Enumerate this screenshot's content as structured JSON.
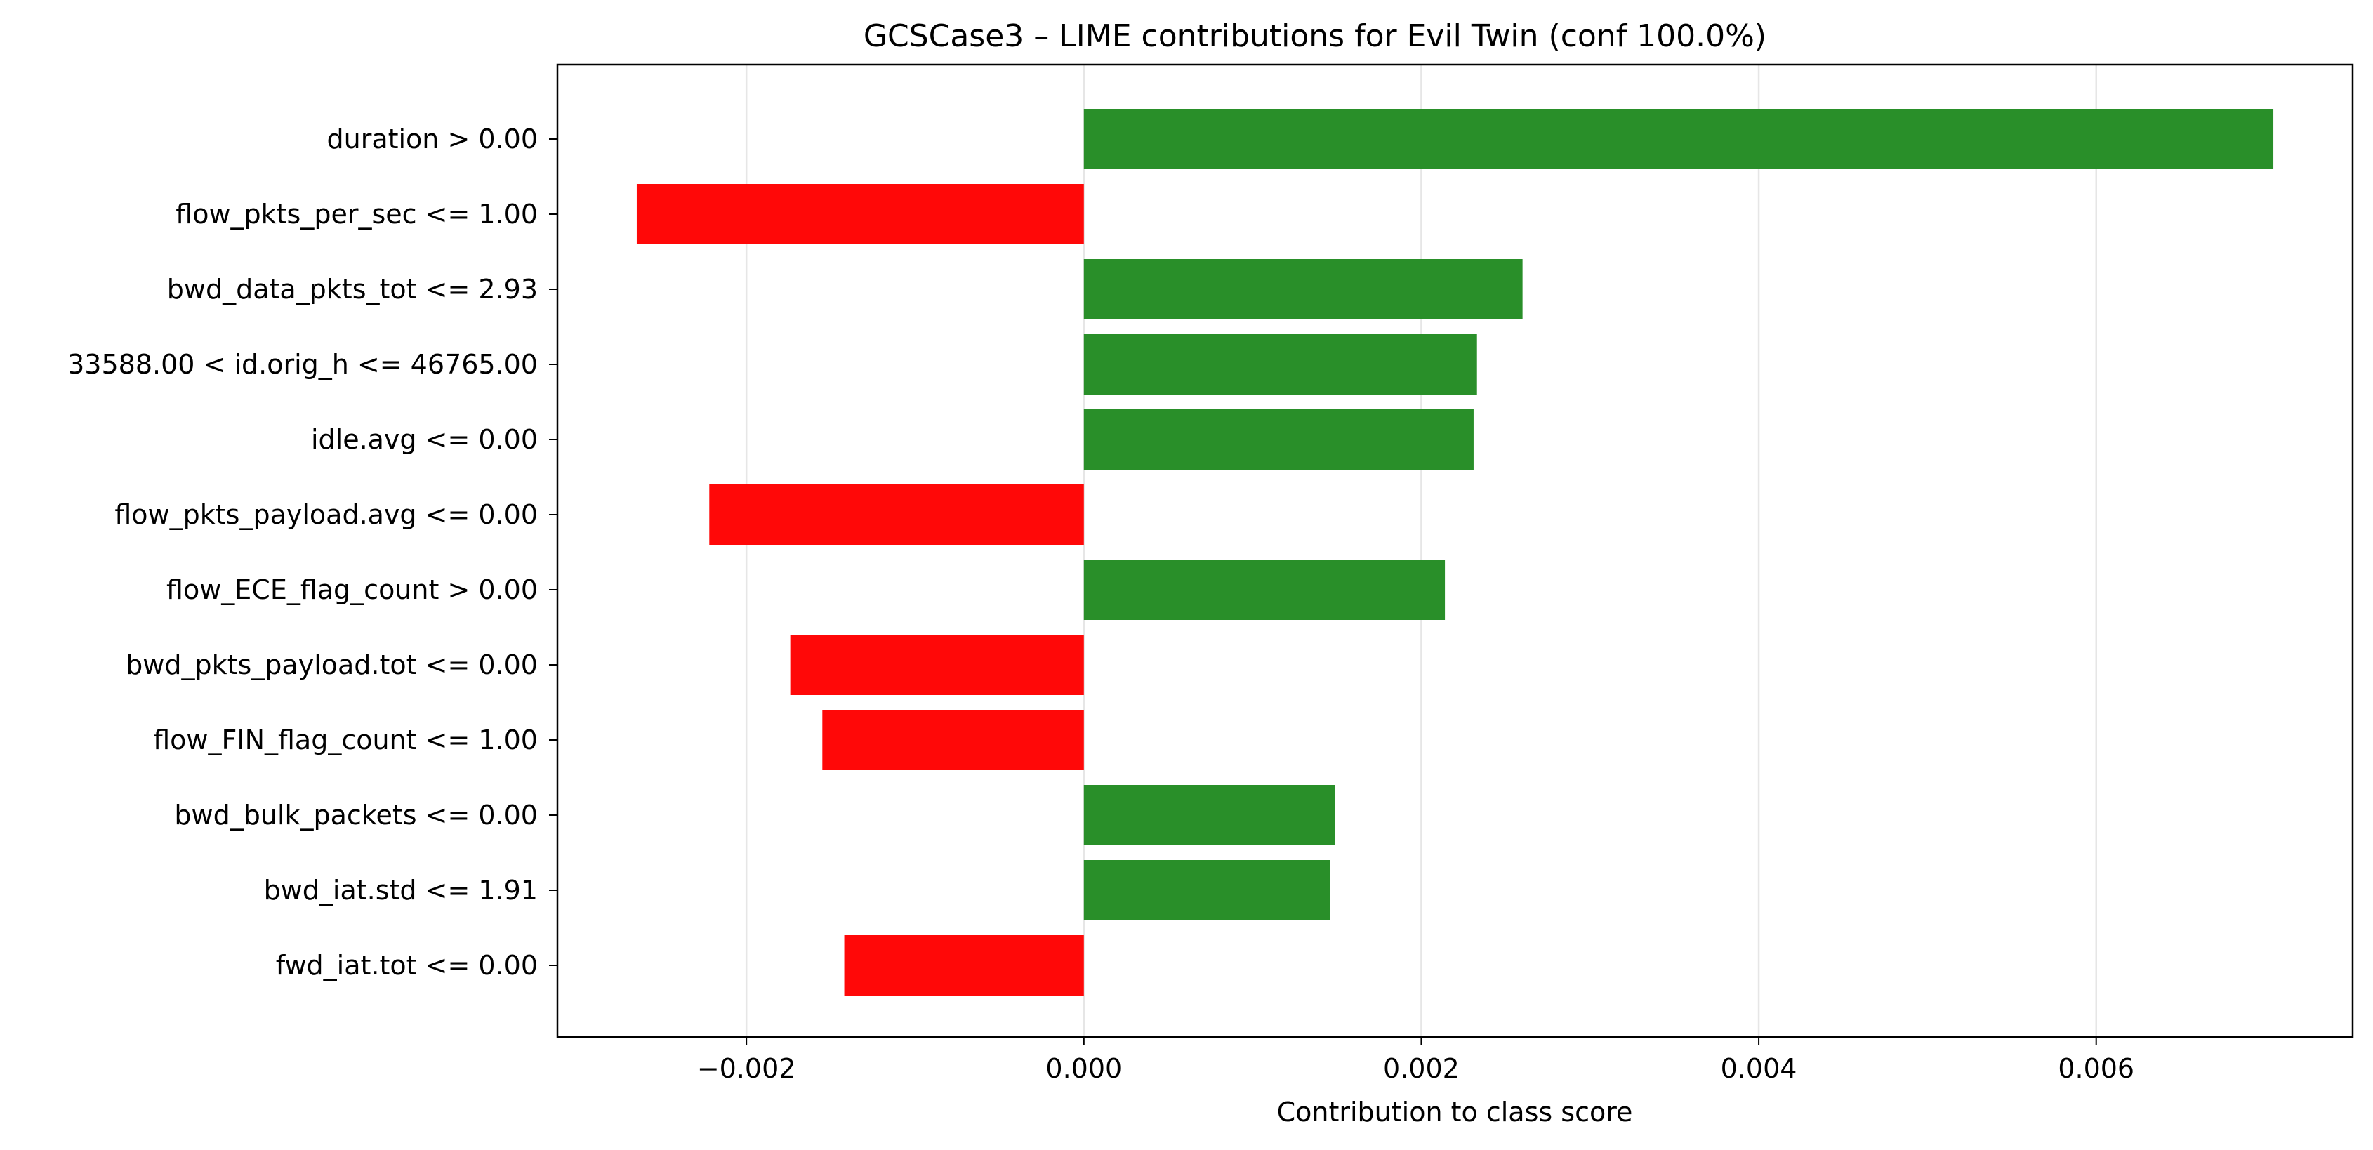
{
  "chart_data": {
    "type": "bar",
    "orientation": "horizontal",
    "title": "GCSCase3 – LIME contributions for Evil Twin (conf 100.0%)",
    "xlabel": "Contribution to class score",
    "ylabel": "",
    "xlim": [
      -0.00312,
      0.00752
    ],
    "xticks": [
      -0.002,
      0.0,
      0.002,
      0.004,
      0.006
    ],
    "xtick_labels": [
      "−0.002",
      "0.000",
      "0.002",
      "0.004",
      "0.006"
    ],
    "grid": "vertical",
    "colors": {
      "positive": "#228b22",
      "negative": "#ff0000"
    },
    "categories": [
      "duration > 0.00",
      "flow_pkts_per_sec <= 1.00",
      "bwd_data_pkts_tot <= 2.93",
      "33588.00 < id.orig_h <= 46765.00",
      "idle.avg <= 0.00",
      "flow_pkts_payload.avg <= 0.00",
      "flow_ECE_flag_count > 0.00",
      "bwd_pkts_payload.tot <= 0.00",
      "flow_FIN_flag_count <= 1.00",
      "bwd_bulk_packets <= 0.00",
      "bwd_iat.std <= 1.91",
      "fwd_iat.tot <= 0.00"
    ],
    "values": [
      0.00705,
      -0.00265,
      0.0026,
      0.00233,
      0.00231,
      -0.00222,
      0.00214,
      -0.00174,
      -0.00155,
      0.00149,
      0.00146,
      -0.00142
    ]
  }
}
